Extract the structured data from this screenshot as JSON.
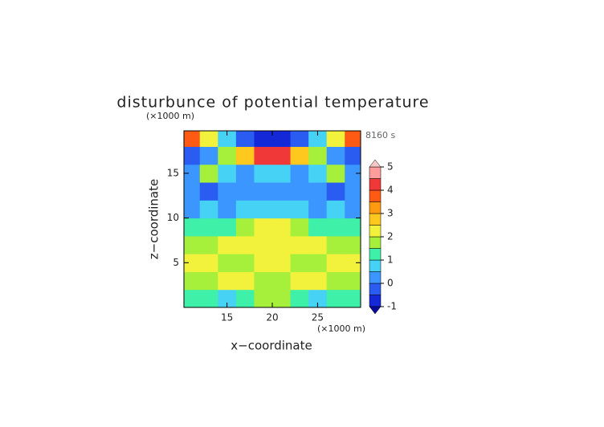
{
  "chart_data": {
    "type": "contour",
    "title": "disturbunce of potential temperature",
    "time_label": "8160 s",
    "x_label": "x−coordinate",
    "y_label": "z−coordinate",
    "x_unit": "(×1000 m)",
    "y_unit": "(×1000 m)",
    "xlim": [
      10.25,
      29.75
    ],
    "ylim": [
      0,
      19.75
    ],
    "xticks": [
      15,
      20,
      25
    ],
    "yticks": [
      5,
      10,
      15
    ],
    "x": [
      11,
      13,
      15,
      17,
      19,
      21,
      23,
      25,
      27,
      29
    ],
    "y": [
      1,
      3,
      5,
      7,
      9,
      11,
      13,
      15,
      17,
      19
    ],
    "z": [
      [
        1.2,
        1.0,
        0.8,
        1.2,
        1.5,
        1.5,
        1.2,
        0.8,
        1.0,
        1.2
      ],
      [
        1.5,
        1.8,
        2.0,
        2.0,
        1.8,
        1.8,
        2.0,
        2.0,
        1.8,
        1.5
      ],
      [
        2.0,
        2.2,
        1.8,
        1.7,
        2.3,
        2.3,
        1.7,
        1.8,
        2.2,
        2.0
      ],
      [
        1.5,
        1.8,
        2.0,
        2.0,
        2.3,
        2.3,
        2.0,
        2.0,
        1.8,
        1.5
      ],
      [
        1.0,
        1.2,
        1.3,
        1.5,
        2.0,
        2.0,
        1.5,
        1.3,
        1.2,
        1.0
      ],
      [
        0.3,
        0.5,
        0.3,
        0.5,
        0.8,
        0.8,
        0.5,
        0.3,
        0.5,
        0.3
      ],
      [
        0.0,
        -0.3,
        0.0,
        0.3,
        0.0,
        0.0,
        0.3,
        0.0,
        -0.3,
        0.0
      ],
      [
        0.2,
        1.5,
        0.5,
        0.0,
        0.5,
        0.5,
        0.0,
        0.5,
        1.5,
        0.2
      ],
      [
        -0.5,
        0.2,
        1.5,
        2.5,
        4.2,
        4.2,
        2.5,
        1.5,
        0.2,
        -0.5
      ],
      [
        3.5,
        2.0,
        0.5,
        -0.5,
        -0.6,
        -0.6,
        -0.5,
        0.5,
        2.0,
        3.5
      ]
    ],
    "levels": [
      -1,
      -0.5,
      0,
      0.5,
      1,
      1.5,
      2,
      2.5,
      3,
      3.5,
      4,
      4.5,
      5
    ],
    "colors": [
      "#1428d8",
      "#2a5cf2",
      "#3c96ff",
      "#46d2f5",
      "#3ef0a8",
      "#a6f03c",
      "#f2f23c",
      "#ffc81e",
      "#ff9a10",
      "#ff5a14",
      "#f03838",
      "#ff9c9c"
    ],
    "extend_colors": [
      "#0a0a9a",
      "#f8c8c8"
    ],
    "colorbar_ticks": [
      -1,
      0,
      1,
      2,
      3,
      4,
      5
    ]
  }
}
